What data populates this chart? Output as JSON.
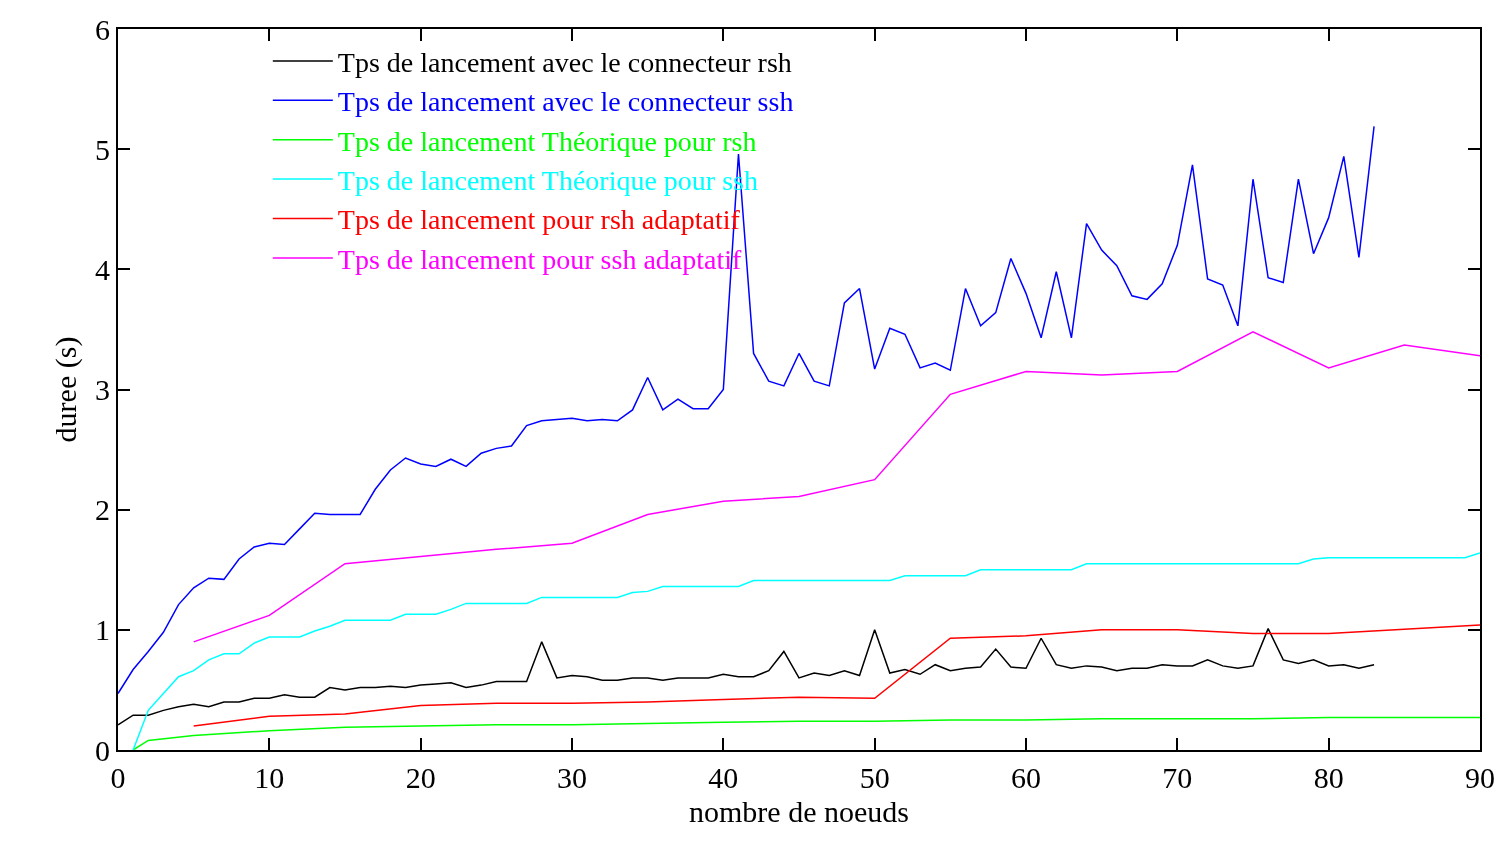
{
  "chart_data": {
    "type": "line",
    "xlabel": "nombre de noeuds",
    "ylabel": "duree (s)",
    "xlim": [
      0,
      90
    ],
    "xticks": [
      0,
      10,
      20,
      30,
      40,
      50,
      60,
      70,
      80,
      90
    ],
    "ylim": [
      0,
      6
    ],
    "yticks": [
      0,
      1,
      2,
      3,
      4,
      5,
      6
    ],
    "legend": "top left",
    "marker": "none",
    "line_style": "solid",
    "x": [
      0,
      1,
      2,
      3,
      4,
      5,
      6,
      7,
      8,
      9,
      10,
      11,
      12,
      13,
      14,
      15,
      16,
      17,
      18,
      19,
      20,
      21,
      22,
      23,
      24,
      25,
      26,
      27,
      28,
      29,
      30,
      31,
      32,
      33,
      34,
      35,
      36,
      37,
      38,
      39,
      40,
      41,
      42,
      43,
      44,
      45,
      46,
      47,
      48,
      49,
      50,
      51,
      52,
      53,
      54,
      55,
      56,
      57,
      58,
      59,
      60,
      61,
      62,
      63,
      64,
      65,
      66,
      67,
      68,
      69,
      70,
      71,
      72,
      73,
      74,
      75,
      76,
      77,
      78,
      79,
      80,
      81,
      82,
      83
    ],
    "series": [
      {
        "name": "Tps de lancement avec le connecteur rsh",
        "color": "#000000",
        "values": [
          0.21,
          0.29,
          0.29,
          0.33,
          0.36,
          0.38,
          0.36,
          0.4,
          0.4,
          0.43,
          0.43,
          0.46,
          0.44,
          0.44,
          0.52,
          0.5,
          0.52,
          0.52,
          0.53,
          0.52,
          0.54,
          0.55,
          0.56,
          0.52,
          0.54,
          0.57,
          0.57,
          0.57,
          0.9,
          0.6,
          0.62,
          0.61,
          0.58,
          0.58,
          0.6,
          0.6,
          0.58,
          0.6,
          0.6,
          0.6,
          0.63,
          0.61,
          0.61,
          0.66,
          0.82,
          0.6,
          0.64,
          0.62,
          0.66,
          0.62,
          1.0,
          0.64,
          0.67,
          0.63,
          0.71,
          0.66,
          0.68,
          0.69,
          0.84,
          0.69,
          0.68,
          0.93,
          0.71,
          0.68,
          0.7,
          0.69,
          0.66,
          0.68,
          0.68,
          0.71,
          0.7,
          0.7,
          0.75,
          0.7,
          0.68,
          0.7,
          1.01,
          0.75,
          0.72,
          0.75,
          0.7,
          0.71,
          0.68,
          0.71
        ]
      },
      {
        "name": "Tps de lancement avec le connecteur ssh",
        "color": "#0000ff",
        "values": [
          0.47,
          0.67,
          0.82,
          0.98,
          1.21,
          1.35,
          1.43,
          1.42,
          1.59,
          1.69,
          1.72,
          1.71,
          1.84,
          1.97,
          1.96,
          1.96,
          1.96,
          2.17,
          2.33,
          2.43,
          2.38,
          2.36,
          2.42,
          2.36,
          2.47,
          2.51,
          2.53,
          2.7,
          2.74,
          2.75,
          2.76,
          2.74,
          2.75,
          2.74,
          2.83,
          3.1,
          2.83,
          2.92,
          2.84,
          2.84,
          3.0,
          4.96,
          3.3,
          3.07,
          3.03,
          3.3,
          3.07,
          3.03,
          3.72,
          3.84,
          3.17,
          3.51,
          3.46,
          3.18,
          3.22,
          3.16,
          3.84,
          3.53,
          3.64,
          4.09,
          3.8,
          3.43,
          3.98,
          3.43,
          4.38,
          4.16,
          4.03,
          3.78,
          3.75,
          3.88,
          4.2,
          4.87,
          3.92,
          3.87,
          3.53,
          4.75,
          3.93,
          3.89,
          4.75,
          4.13,
          4.43,
          4.94,
          4.1,
          5.19
        ]
      },
      {
        "name": "Tps de lancement Théorique pour rsh",
        "color": "#00ff00",
        "x": [
          1,
          2,
          5,
          10,
          15,
          20,
          25,
          30,
          35,
          40,
          45,
          50,
          55,
          60,
          65,
          70,
          75,
          80,
          85,
          90
        ],
        "values": [
          0,
          0.08,
          0.12,
          0.16,
          0.19,
          0.2,
          0.21,
          0.21,
          0.22,
          0.23,
          0.24,
          0.24,
          0.25,
          0.25,
          0.26,
          0.26,
          0.26,
          0.27,
          0.27,
          0.27
        ]
      },
      {
        "name": "Tps de lancement Théorique pour ssh",
        "color": "#00ffff",
        "x": [
          1,
          2,
          3,
          4,
          5,
          6,
          7,
          8,
          9,
          10,
          11,
          12,
          13,
          14,
          15,
          16,
          17,
          18,
          19,
          20,
          21,
          22,
          23,
          24,
          25,
          26,
          27,
          28,
          29,
          30,
          31,
          32,
          33,
          34,
          35,
          36,
          37,
          38,
          39,
          40,
          41,
          42,
          43,
          44,
          45,
          46,
          47,
          48,
          49,
          50,
          51,
          52,
          53,
          54,
          55,
          56,
          57,
          58,
          59,
          60,
          61,
          62,
          63,
          64,
          65,
          66,
          67,
          68,
          69,
          70,
          71,
          72,
          73,
          74,
          75,
          76,
          77,
          78,
          79,
          80,
          81,
          82,
          83,
          84,
          85,
          86,
          87,
          88,
          89,
          90
        ],
        "values": [
          0,
          0.33,
          0.47,
          0.61,
          0.66,
          0.75,
          0.8,
          0.8,
          0.89,
          0.94,
          0.94,
          0.94,
          0.99,
          1.03,
          1.08,
          1.08,
          1.08,
          1.08,
          1.13,
          1.13,
          1.13,
          1.17,
          1.22,
          1.22,
          1.22,
          1.22,
          1.22,
          1.27,
          1.27,
          1.27,
          1.27,
          1.27,
          1.27,
          1.31,
          1.32,
          1.36,
          1.36,
          1.36,
          1.36,
          1.36,
          1.36,
          1.41,
          1.41,
          1.41,
          1.41,
          1.41,
          1.41,
          1.41,
          1.41,
          1.41,
          1.41,
          1.45,
          1.45,
          1.45,
          1.45,
          1.45,
          1.5,
          1.5,
          1.5,
          1.5,
          1.5,
          1.5,
          1.5,
          1.55,
          1.55,
          1.55,
          1.55,
          1.55,
          1.55,
          1.55,
          1.55,
          1.55,
          1.55,
          1.55,
          1.55,
          1.55,
          1.55,
          1.55,
          1.59,
          1.6,
          1.6,
          1.6,
          1.6,
          1.6,
          1.6,
          1.6,
          1.6,
          1.6,
          1.6,
          1.64
        ]
      },
      {
        "name": "Tps de lancement pour rsh adaptatif",
        "color": "#ff0000",
        "x": [
          5,
          10,
          15,
          20,
          25,
          30,
          35,
          40,
          45,
          50,
          55,
          60,
          65,
          70,
          75,
          80,
          90
        ],
        "values": [
          0.2,
          0.28,
          0.3,
          0.37,
          0.39,
          0.39,
          0.4,
          0.42,
          0.44,
          0.43,
          0.93,
          0.95,
          1.0,
          1.0,
          0.97,
          0.97,
          1.04
        ]
      },
      {
        "name": "Tps de lancement pour ssh adaptatif",
        "color": "#ff00ff",
        "x": [
          5,
          10,
          15,
          20,
          25,
          30,
          35,
          40,
          45,
          50,
          55,
          60,
          65,
          70,
          75,
          80,
          85,
          90
        ],
        "values": [
          0.9,
          1.12,
          1.55,
          1.61,
          1.67,
          1.72,
          1.96,
          2.07,
          2.11,
          2.25,
          2.96,
          3.15,
          3.12,
          3.15,
          3.48,
          3.18,
          3.37,
          3.28
        ]
      }
    ]
  }
}
